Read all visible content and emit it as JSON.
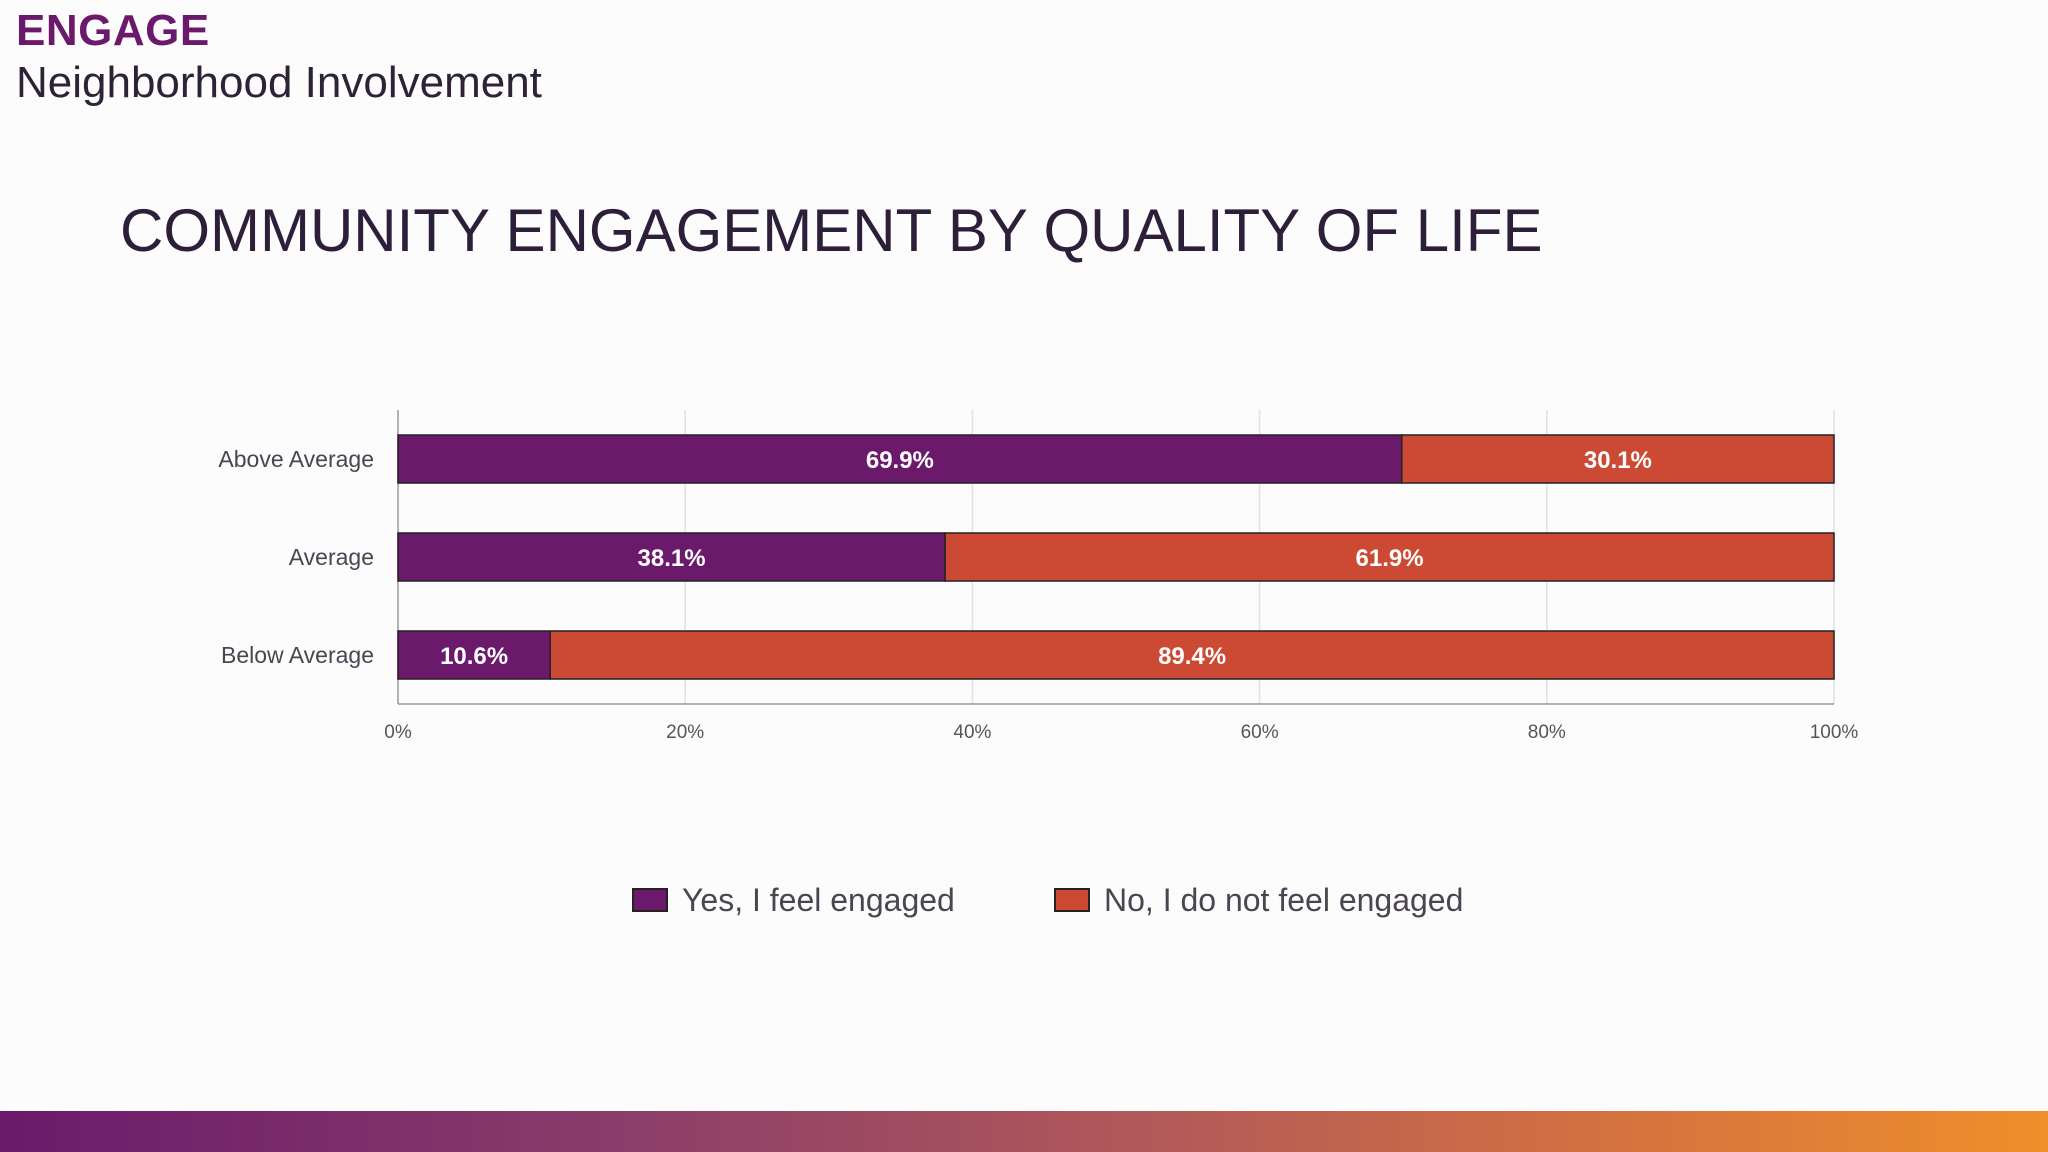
{
  "header": {
    "kicker": "ENGAGE",
    "subtitle": "Neighborhood Involvement"
  },
  "colors": {
    "engaged": "#6b1a6b",
    "not_engaged": "#cc4a33",
    "grid": "#e2e0e4",
    "axis": "#9a9a9a",
    "bar_outline": "#222222"
  },
  "legend": {
    "engaged_label": "Yes, I feel engaged",
    "not_engaged_label": "No, I do not feel engaged"
  },
  "chart_data": {
    "type": "bar",
    "orientation": "horizontal",
    "stacked": true,
    "title": "COMMUNITY ENGAGEMENT BY QUALITY OF LIFE",
    "xlabel": "",
    "ylabel": "",
    "categories": [
      "Above Average",
      "Average",
      "Below Average"
    ],
    "series": [
      {
        "name": "Yes, I feel engaged",
        "values": [
          69.9,
          38.1,
          10.6
        ],
        "labels": [
          "69.9%",
          "38.1%",
          "10.6%"
        ]
      },
      {
        "name": "No, I do not feel engaged",
        "values": [
          30.1,
          61.9,
          89.4
        ],
        "labels": [
          "30.1%",
          "61.9%",
          "89.4%"
        ]
      }
    ],
    "xlim": [
      0,
      100
    ],
    "xticks": [
      "0%",
      "20%",
      "40%",
      "60%",
      "80%",
      "100%"
    ],
    "grid": true,
    "legend_position": "bottom"
  }
}
